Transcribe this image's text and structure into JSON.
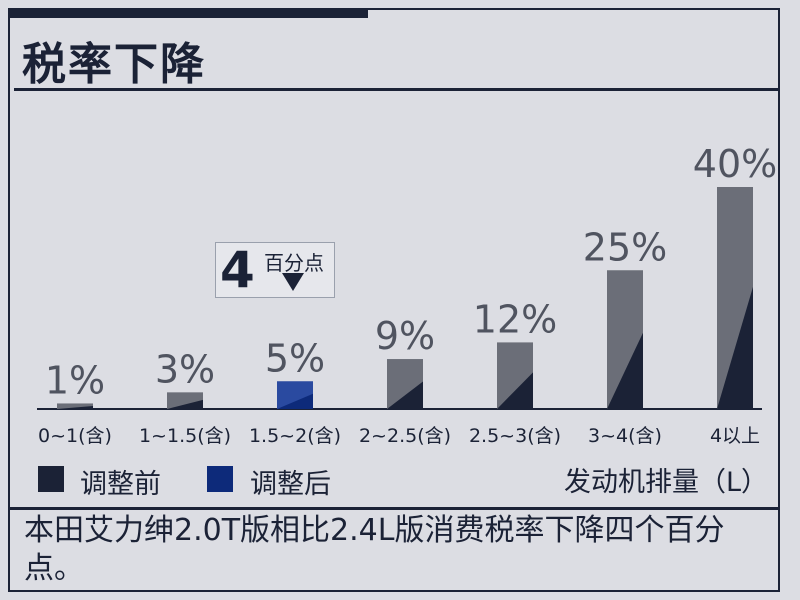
{
  "title": "税率下降",
  "chart_data": {
    "type": "bar",
    "categories": [
      "0~1(含)",
      "1~1.5(含)",
      "1.5~2(含)",
      "2~2.5(含)",
      "2.5~3(含)",
      "3~4(含)",
      "4以上"
    ],
    "values": [
      1,
      3,
      5,
      9,
      12,
      25,
      40
    ],
    "data_labels": [
      "1%",
      "3%",
      "5%",
      "9%",
      "12%",
      "25%",
      "40%"
    ],
    "ylim": [
      0,
      40
    ],
    "xlabel": "发动机排量（L）",
    "ylabel": "",
    "legend": [
      {
        "name": "调整前",
        "color": "#1b2236"
      },
      {
        "name": "调整后",
        "color": "#0d2a7a"
      }
    ],
    "highlight_index": 2,
    "annotation": {
      "number": "4",
      "text": "百分点"
    },
    "colors": {
      "bar": "#1b2236",
      "bar_shade": "#6b6e78",
      "highlight": "#0d2a7a",
      "highlight_shade": "#2a4aa0"
    }
  },
  "caption": "本田艾力绅2.0T版相比2.4L版消费税率下降四个百分点。"
}
